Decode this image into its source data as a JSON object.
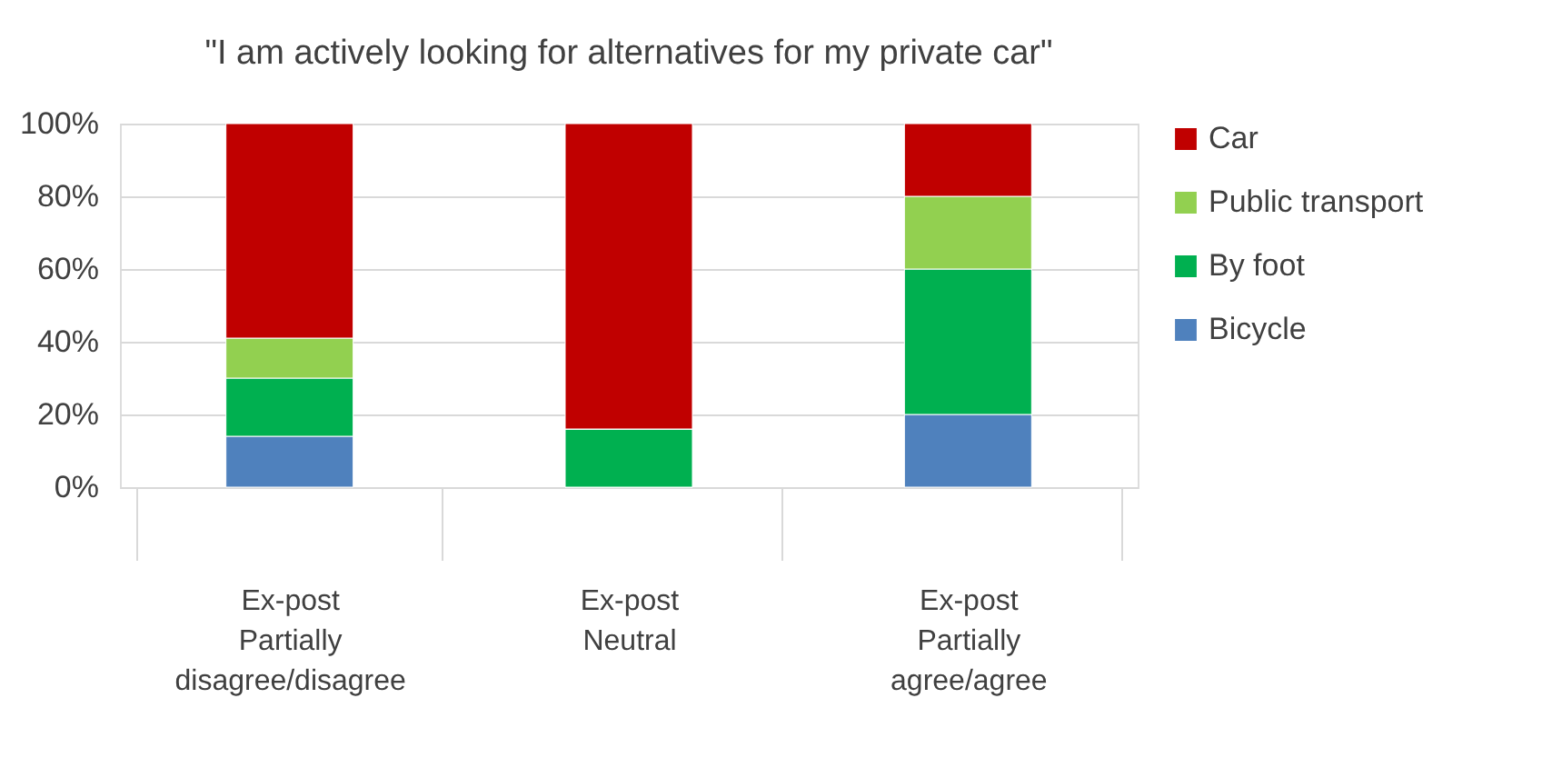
{
  "chart_data": {
    "type": "bar",
    "stacked": true,
    "title": "\"I am actively looking for alternatives for my private car\"",
    "categories": [
      "Ex-post\n\nPartially\ndisagree/disagree",
      "Ex-post\n\nNeutral",
      "Ex-post\n\nPartially\nagree/agree"
    ],
    "series": [
      {
        "name": "Bicycle",
        "color": "#4f81bd",
        "values": [
          14,
          0,
          20
        ]
      },
      {
        "name": "By foot",
        "color": "#00b050",
        "values": [
          16,
          16,
          40
        ]
      },
      {
        "name": "Public transport",
        "color": "#92d050",
        "values": [
          11,
          0,
          20
        ]
      },
      {
        "name": "Car",
        "color": "#c00000",
        "values": [
          59,
          84,
          20
        ]
      }
    ],
    "ylim": [
      0,
      100
    ],
    "yticks": [
      {
        "value": 0,
        "label": "0%"
      },
      {
        "value": 20,
        "label": "20%"
      },
      {
        "value": 40,
        "label": "40%"
      },
      {
        "value": 60,
        "label": "60%"
      },
      {
        "value": 80,
        "label": "80%"
      },
      {
        "value": 100,
        "label": "100%"
      }
    ],
    "grid": "y",
    "legend": "right"
  }
}
